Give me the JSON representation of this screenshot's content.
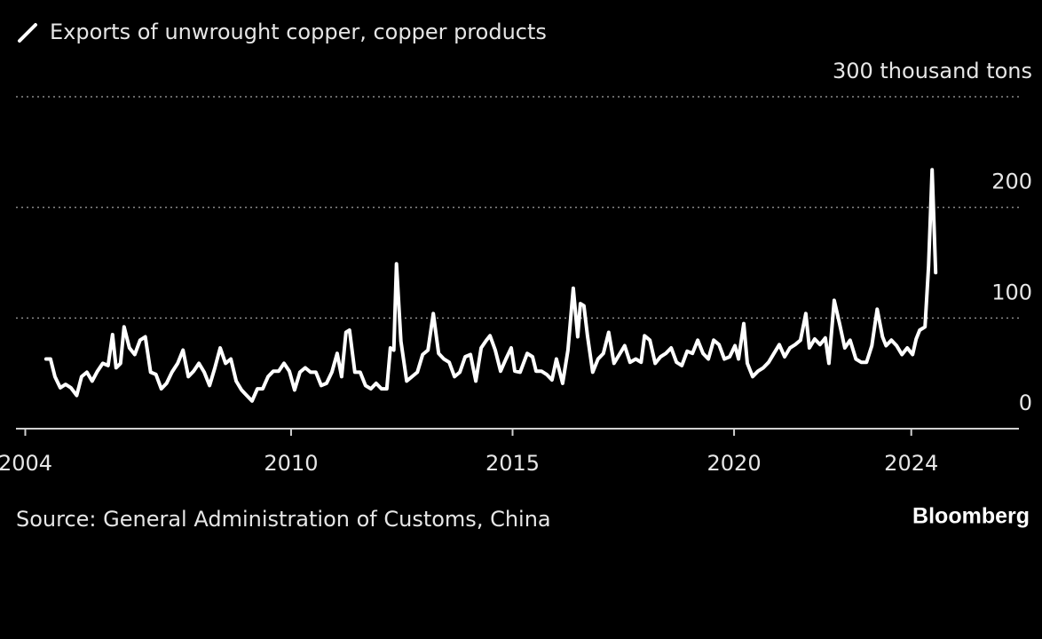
{
  "chart_data": {
    "type": "line",
    "title": "Exports of unwrought copper, copper products",
    "source": "Source: General Administration of Customs, China",
    "brand": "Bloomberg",
    "color": "#ffffff",
    "grid": true,
    "xlim": [
      2003.79,
      2026.43
    ],
    "xticks": [
      2004,
      2010,
      2015,
      2020,
      2024
    ],
    "ylim": [
      0,
      300
    ],
    "yticks": [
      0,
      100,
      200,
      {
        "value": 300,
        "label": "300 thousand tons"
      }
    ],
    "x": [
      2004.47,
      2004.57,
      2004.67,
      2004.79,
      2004.91,
      2005.03,
      2005.16,
      2005.27,
      2005.39,
      2005.51,
      2005.63,
      2005.75,
      2005.87,
      2005.97,
      2006.05,
      2006.15,
      2006.23,
      2006.35,
      2006.47,
      2006.59,
      2006.71,
      2006.83,
      2006.95,
      2007.07,
      2007.19,
      2007.31,
      2007.44,
      2007.56,
      2007.68,
      2007.8,
      2007.92,
      2008.04,
      2008.16,
      2008.28,
      2008.4,
      2008.52,
      2008.64,
      2008.76,
      2008.88,
      2009.0,
      2009.12,
      2009.24,
      2009.36,
      2009.48,
      2009.6,
      2009.72,
      2009.84,
      2009.96,
      2010.08,
      2010.2,
      2010.32,
      2010.44,
      2010.56,
      2010.68,
      2010.8,
      2010.92,
      2011.04,
      2011.14,
      2011.24,
      2011.32,
      2011.44,
      2011.56,
      2011.68,
      2011.8,
      2011.92,
      2012.04,
      2012.16,
      2012.24,
      2012.32,
      2012.38,
      2012.48,
      2012.61,
      2012.73,
      2012.85,
      2012.97,
      2013.09,
      2013.21,
      2013.33,
      2013.45,
      2013.57,
      2013.69,
      2013.81,
      2013.93,
      2014.05,
      2014.17,
      2014.29,
      2014.41,
      2014.49,
      2014.61,
      2014.73,
      2014.85,
      2014.97,
      2015.05,
      2015.17,
      2015.33,
      2015.45,
      2015.53,
      2015.65,
      2015.77,
      2015.89,
      2015.99,
      2016.13,
      2016.25,
      2016.37,
      2016.47,
      2016.53,
      2016.61,
      2016.69,
      2016.81,
      2016.93,
      2017.05,
      2017.17,
      2017.29,
      2017.41,
      2017.53,
      2017.65,
      2017.78,
      2017.9,
      2017.98,
      2018.1,
      2018.22,
      2018.34,
      2018.46,
      2018.58,
      2018.7,
      2018.82,
      2018.94,
      2019.06,
      2019.18,
      2019.3,
      2019.42,
      2019.54,
      2019.66,
      2019.78,
      2019.9,
      2020.02,
      2020.1,
      2020.22,
      2020.3,
      2020.42,
      2020.54,
      2020.66,
      2020.78,
      2020.9,
      2021.02,
      2021.14,
      2021.26,
      2021.38,
      2021.5,
      2021.62,
      2021.7,
      2021.82,
      2021.94,
      2022.06,
      2022.14,
      2022.26,
      2022.38,
      2022.5,
      2022.62,
      2022.75,
      2022.87,
      2022.99,
      2023.11,
      2023.23,
      2023.35,
      2023.43,
      2023.55,
      2023.67,
      2023.79,
      2023.91,
      2024.03,
      2024.11,
      2024.19,
      2024.31,
      2024.39,
      2024.47,
      2024.55
    ],
    "values": [
      63,
      63,
      47,
      37,
      40,
      37,
      30,
      47,
      51,
      43,
      52,
      59,
      57,
      85,
      55,
      59,
      92,
      73,
      67,
      80,
      83,
      51,
      49,
      36,
      41,
      51,
      59,
      71,
      47,
      52,
      59,
      51,
      39,
      55,
      73,
      59,
      63,
      43,
      35,
      30,
      25,
      36,
      36,
      47,
      52,
      52,
      59,
      52,
      35,
      51,
      55,
      51,
      51,
      39,
      41,
      51,
      68,
      47,
      87,
      89,
      51,
      51,
      39,
      36,
      41,
      36,
      36,
      73,
      71,
      149,
      79,
      43,
      47,
      51,
      67,
      71,
      104,
      68,
      63,
      60,
      47,
      51,
      65,
      67,
      43,
      73,
      80,
      84,
      71,
      52,
      63,
      73,
      52,
      51,
      68,
      65,
      52,
      52,
      49,
      44,
      63,
      41,
      71,
      127,
      83,
      113,
      111,
      84,
      51,
      63,
      68,
      87,
      59,
      67,
      75,
      60,
      63,
      60,
      84,
      80,
      59,
      65,
      68,
      73,
      60,
      57,
      70,
      68,
      80,
      68,
      63,
      80,
      76,
      63,
      65,
      75,
      63,
      95,
      59,
      47,
      52,
      55,
      60,
      68,
      76,
      65,
      73,
      76,
      80,
      104,
      73,
      81,
      76,
      82,
      59,
      116,
      95,
      73,
      80,
      63,
      60,
      60,
      75,
      108,
      83,
      75,
      80,
      75,
      67,
      73,
      67,
      81,
      89,
      92,
      147,
      234,
      141
    ]
  }
}
